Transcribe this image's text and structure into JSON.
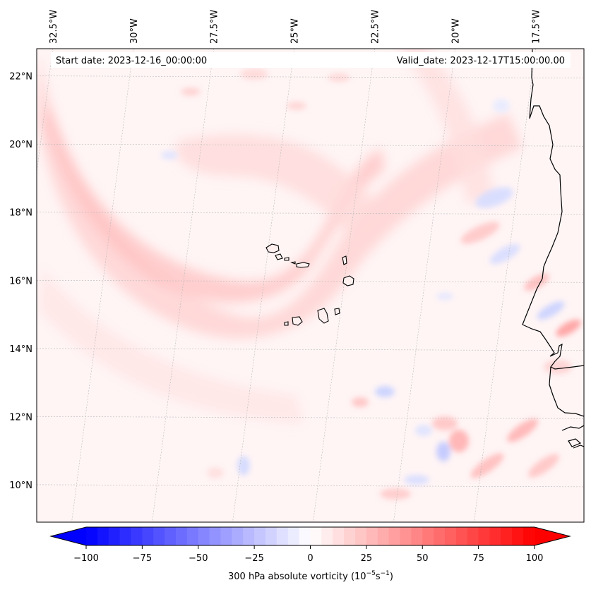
{
  "map": {
    "start_date_text": "Start date: 2023-12-16_00:00:00",
    "valid_date_text": "Valid_date: 2023-12-17T15:00:00.00",
    "extent": {
      "lon_min": -33.0,
      "lon_max": -16.0,
      "lat_min": 8.9,
      "lat_max": 22.8
    },
    "lon_ticks": [
      {
        "lon": -32.5,
        "label": "32.5°W"
      },
      {
        "lon": -30.0,
        "label": "30°W"
      },
      {
        "lon": -27.5,
        "label": "27.5°W"
      },
      {
        "lon": -25.0,
        "label": "25°W"
      },
      {
        "lon": -22.5,
        "label": "22.5°W"
      },
      {
        "lon": -20.0,
        "label": "20°W"
      },
      {
        "lon": -17.5,
        "label": "17.5°W"
      }
    ],
    "lat_ticks": [
      {
        "lat": 22,
        "label": "22°N"
      },
      {
        "lat": 20,
        "label": "20°N"
      },
      {
        "lat": 18,
        "label": "18°N"
      },
      {
        "lat": 16,
        "label": "16°N"
      },
      {
        "lat": 14,
        "label": "14°N"
      },
      {
        "lat": 12,
        "label": "12°N"
      },
      {
        "lat": 10,
        "label": "10°N"
      }
    ],
    "gridlines": true
  },
  "colorbar": {
    "label_prefix": "300 hPa absolute vorticity (10",
    "label_exp1": "−5",
    "label_mid": "s",
    "label_exp2": "−1",
    "label_suffix": ")",
    "min": -100,
    "max": 100,
    "ticks": [
      {
        "value": -100,
        "label": "−100"
      },
      {
        "value": -75,
        "label": "−75"
      },
      {
        "value": -50,
        "label": "−50"
      },
      {
        "value": -25,
        "label": "−25"
      },
      {
        "value": 0,
        "label": "0"
      },
      {
        "value": 25,
        "label": "25"
      },
      {
        "value": 50,
        "label": "50"
      },
      {
        "value": 75,
        "label": "75"
      },
      {
        "value": 100,
        "label": "100"
      }
    ],
    "colormap": "bwr",
    "extend": "both"
  },
  "field_features": {
    "positive_band": "arc from 33°W 20°N through 27°W 15.8°N to 22°W 18.5°N and northeast toward 17.5°W 21°N",
    "islands": "Cape Verde archipelago near 24.5–22.5°W, 14.8–17.2°N",
    "coast": "West African coastline from 17°W 22°N south to 16°W 11°N"
  }
}
